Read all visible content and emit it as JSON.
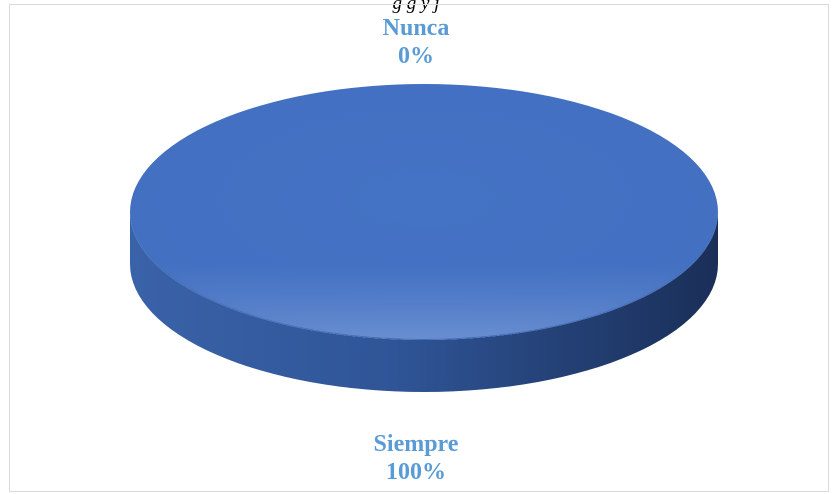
{
  "caption_fragment": "g                                                                     g    y  j",
  "chart_data": {
    "type": "pie",
    "title": "",
    "categories": [
      "Siempre",
      "Nunca"
    ],
    "values": [
      100,
      0
    ],
    "labels": [
      {
        "name": "Siempre",
        "percent": "100%"
      },
      {
        "name": "Nunca",
        "percent": "0%"
      }
    ],
    "colors": [
      "#4472c4",
      "#5b9bd5"
    ],
    "label_color": "#5b9bd5",
    "style": "3d",
    "legend": "none"
  }
}
